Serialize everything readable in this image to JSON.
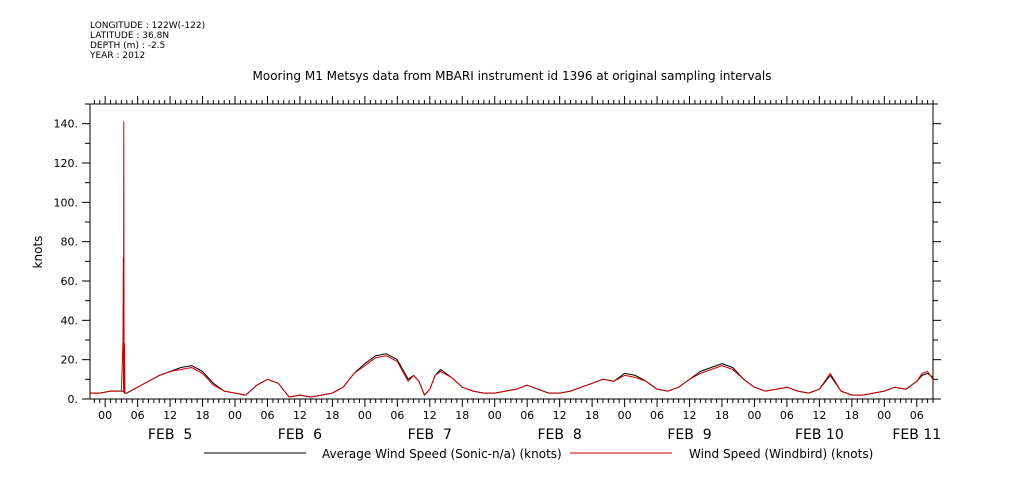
{
  "header": {
    "meta_lines": [
      "LONGITUDE : 122W(-122)",
      "LATITUDE : 36.8N",
      "DEPTH (m) : -2.5",
      "YEAR : 2012"
    ],
    "title": "Mooring M1 Metsys data from MBARI instrument id 1396 at original sampling intervals"
  },
  "chart_data": {
    "type": "line",
    "title": "Mooring M1 Metsys data from MBARI instrument id 1396 at original sampling intervals",
    "ylabel": "knots",
    "xlabel": "",
    "ylim": [
      0,
      150
    ],
    "y_ticks": [
      0,
      20,
      40,
      60,
      80,
      100,
      120,
      140
    ],
    "y_tick_labels": [
      "0.",
      "20.",
      "40.",
      "60.",
      "80.",
      "100.",
      "120.",
      "140."
    ],
    "x_hours_range": [
      -2.8,
      153
    ],
    "x_hour_ticks": [
      0,
      6,
      12,
      18,
      24,
      30,
      36,
      42,
      48,
      54,
      60,
      66,
      72,
      78,
      84,
      90,
      96,
      102,
      108,
      114,
      120,
      126,
      132,
      138,
      144,
      150
    ],
    "x_hour_tick_labels": [
      "00",
      "06",
      "12",
      "18",
      "00",
      "06",
      "12",
      "18",
      "00",
      "06",
      "12",
      "18",
      "00",
      "06",
      "12",
      "18",
      "00",
      "06",
      "12",
      "18",
      "00",
      "06",
      "12",
      "18",
      "00",
      "06"
    ],
    "day_labels": [
      {
        "label": "FEB  5",
        "hour": 12
      },
      {
        "label": "FEB  6",
        "hour": 36
      },
      {
        "label": "FEB  7",
        "hour": 60
      },
      {
        "label": "FEB  8",
        "hour": 84
      },
      {
        "label": "FEB  9",
        "hour": 108
      },
      {
        "label": "FEB 10",
        "hour": 132
      },
      {
        "label": "FEB 11",
        "hour": 150
      }
    ],
    "grid": false,
    "legend_position": "bottom",
    "series": [
      {
        "name": "Average Wind Speed (Sonic-n/a) (knots)",
        "color": "#000000",
        "hours": [
          -2.8,
          -1,
          1,
          2,
          3,
          3.4,
          3.6,
          4,
          6,
          8,
          10,
          12,
          14,
          16,
          18,
          20,
          22,
          24,
          26,
          28,
          30,
          32,
          34,
          36,
          38,
          40,
          42,
          44,
          46,
          48,
          50,
          52,
          54,
          56,
          57,
          58,
          59,
          60,
          61,
          62,
          64,
          66,
          68,
          70,
          72,
          74,
          76,
          78,
          80,
          82,
          84,
          86,
          88,
          90,
          92,
          94,
          96,
          98,
          100,
          102,
          104,
          106,
          108,
          110,
          112,
          114,
          116,
          118,
          120,
          122,
          124,
          126,
          128,
          130,
          132,
          134,
          136,
          138,
          140,
          142,
          144,
          146,
          148,
          150,
          151,
          152,
          153
        ],
        "values": [
          3,
          3,
          4,
          4,
          4,
          4,
          3,
          3,
          6,
          9,
          12,
          14,
          16,
          17,
          14,
          8,
          4,
          3,
          2,
          7,
          10,
          8,
          1,
          2,
          1,
          2,
          3,
          6,
          13,
          18,
          22,
          23,
          20,
          10,
          12,
          9,
          2,
          5,
          12,
          15,
          11,
          6,
          4,
          3,
          3,
          4,
          5,
          7,
          5,
          3,
          3,
          4,
          6,
          8,
          10,
          9,
          13,
          12,
          9,
          5,
          4,
          6,
          10,
          14,
          16,
          18,
          16,
          10,
          6,
          4,
          5,
          6,
          4,
          3,
          5,
          12,
          4,
          2,
          2,
          3,
          4,
          6,
          5,
          9,
          12,
          13,
          11
        ]
      },
      {
        "name": "Wind Speed (Windbird) (knots)",
        "color": "#cc0000",
        "hours": [
          -2.8,
          -1,
          1,
          2,
          3,
          3.3,
          3.35,
          3.4,
          3.45,
          3.5,
          3.6,
          3.65,
          4,
          6,
          8,
          10,
          12,
          14,
          16,
          18,
          20,
          22,
          24,
          26,
          28,
          30,
          32,
          34,
          36,
          38,
          40,
          42,
          44,
          46,
          48,
          50,
          52,
          54,
          56,
          57,
          58,
          59,
          60,
          61,
          62,
          64,
          66,
          68,
          70,
          72,
          74,
          76,
          78,
          80,
          82,
          84,
          86,
          88,
          90,
          92,
          94,
          96,
          98,
          100,
          102,
          104,
          106,
          108,
          110,
          112,
          114,
          116,
          118,
          120,
          122,
          124,
          126,
          128,
          130,
          132,
          134,
          136,
          138,
          140,
          142,
          144,
          146,
          148,
          150,
          151,
          152,
          153
        ],
        "values": [
          3,
          3,
          4,
          4,
          4,
          30,
          72,
          5,
          141,
          4,
          28,
          3,
          3,
          6,
          9,
          12,
          14,
          15,
          16,
          13,
          7,
          4,
          3,
          2,
          7,
          10,
          8,
          1,
          2,
          1,
          2,
          3,
          6,
          13,
          17,
          21,
          22,
          19,
          9,
          12,
          9,
          2,
          5,
          12,
          14,
          11,
          6,
          4,
          3,
          3,
          4,
          5,
          7,
          5,
          3,
          3,
          4,
          6,
          8,
          10,
          9,
          12,
          11,
          9,
          5,
          4,
          6,
          10,
          13,
          15,
          17,
          15,
          10,
          6,
          4,
          5,
          6,
          4,
          3,
          5,
          13,
          4,
          2,
          2,
          3,
          4,
          6,
          5,
          9,
          13,
          14,
          10
        ]
      }
    ]
  }
}
